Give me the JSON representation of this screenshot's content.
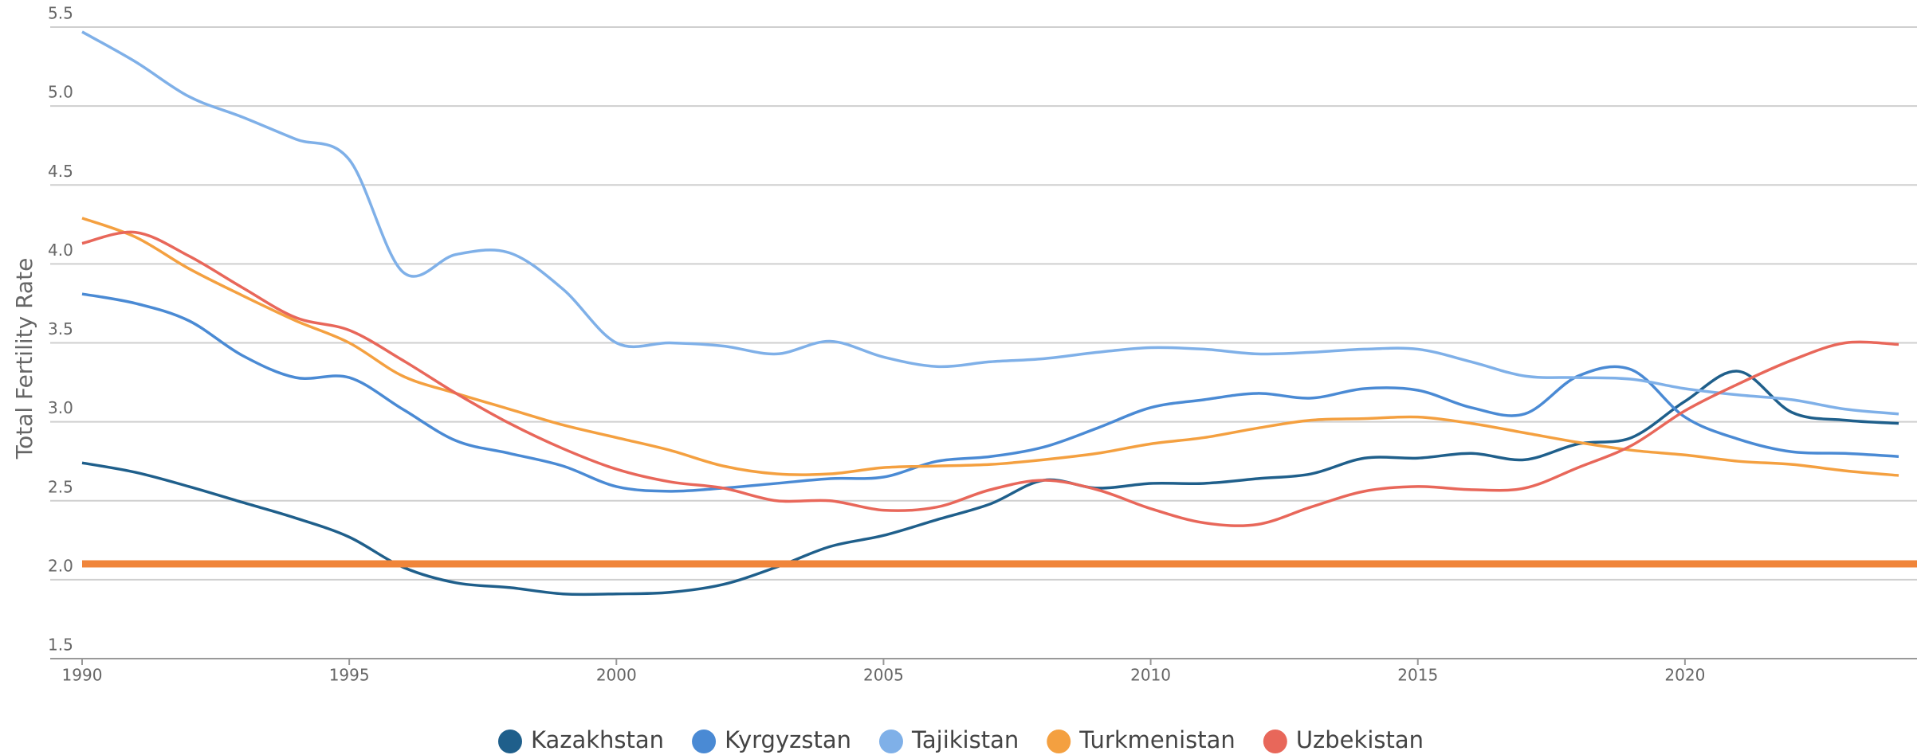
{
  "chart_data": {
    "type": "line",
    "y_axis_label": "Total Fertility Rate",
    "x": [
      1990,
      1991,
      1992,
      1993,
      1994,
      1995,
      1996,
      1997,
      1998,
      1999,
      2000,
      2001,
      2002,
      2003,
      2004,
      2005,
      2006,
      2007,
      2008,
      2009,
      2010,
      2011,
      2012,
      2013,
      2014,
      2015,
      2016,
      2017,
      2018,
      2019,
      2020,
      2021,
      2022,
      2023,
      2024
    ],
    "xlim": [
      1990,
      2024
    ],
    "xticks": [
      1990,
      1995,
      2000,
      2005,
      2010,
      2015,
      2020
    ],
    "ylim": [
      1.5,
      5.5
    ],
    "yticks": [
      1.5,
      {
        "value": 2,
        "label": "2.0"
      },
      2.5,
      {
        "value": 3,
        "label": "3.0"
      },
      3.5,
      {
        "value": 4,
        "label": "4.0"
      },
      4.5,
      {
        "value": 5,
        "label": "5.0"
      },
      5.5
    ],
    "grid": true,
    "legend": "bottom",
    "reference_line": {
      "value": 2.1,
      "color": "#f0853a"
    },
    "series": [
      {
        "name": "Kazakhstan",
        "color": "#1f5f8b",
        "values": [
          2.74,
          2.68,
          2.59,
          2.49,
          2.39,
          2.27,
          2.08,
          1.98,
          1.95,
          1.91,
          1.91,
          1.92,
          1.97,
          2.08,
          2.21,
          2.28,
          2.38,
          2.48,
          2.63,
          2.58,
          2.61,
          2.61,
          2.64,
          2.67,
          2.77,
          2.77,
          2.8,
          2.76,
          2.86,
          2.9,
          3.13,
          3.32,
          3.06,
          3.01,
          2.99
        ]
      },
      {
        "name": "Kyrgyzstan",
        "color": "#4a8ad4",
        "values": [
          3.81,
          3.75,
          3.64,
          3.42,
          3.28,
          3.28,
          3.08,
          2.88,
          2.8,
          2.72,
          2.59,
          2.56,
          2.58,
          2.61,
          2.64,
          2.65,
          2.75,
          2.78,
          2.84,
          2.96,
          3.09,
          3.14,
          3.18,
          3.15,
          3.21,
          3.2,
          3.09,
          3.05,
          3.29,
          3.33,
          3.03,
          2.89,
          2.81,
          2.8,
          2.78
        ]
      },
      {
        "name": "Tajikistan",
        "color": "#7fb0e8",
        "values": [
          5.47,
          5.28,
          5.06,
          4.93,
          4.79,
          4.66,
          3.95,
          4.06,
          4.07,
          3.84,
          3.5,
          3.5,
          3.48,
          3.43,
          3.51,
          3.41,
          3.35,
          3.38,
          3.4,
          3.44,
          3.47,
          3.46,
          3.43,
          3.44,
          3.46,
          3.46,
          3.38,
          3.29,
          3.28,
          3.27,
          3.21,
          3.17,
          3.14,
          3.08,
          3.05
        ]
      },
      {
        "name": "Turkmenistan",
        "color": "#f4a040",
        "values": [
          4.29,
          4.17,
          3.97,
          3.8,
          3.64,
          3.5,
          3.29,
          3.18,
          3.08,
          2.98,
          2.9,
          2.82,
          2.72,
          2.67,
          2.67,
          2.71,
          2.72,
          2.73,
          2.76,
          2.8,
          2.86,
          2.9,
          2.96,
          3.01,
          3.02,
          3.03,
          2.99,
          2.93,
          2.87,
          2.82,
          2.79,
          2.75,
          2.73,
          2.69,
          2.66
        ]
      },
      {
        "name": "Uzbekistan",
        "color": "#e8675a",
        "values": [
          4.13,
          4.2,
          4.05,
          3.85,
          3.66,
          3.58,
          3.39,
          3.18,
          2.99,
          2.83,
          2.7,
          2.62,
          2.58,
          2.5,
          2.5,
          2.44,
          2.46,
          2.57,
          2.63,
          2.57,
          2.45,
          2.36,
          2.35,
          2.46,
          2.56,
          2.59,
          2.57,
          2.58,
          2.71,
          2.85,
          3.07,
          3.24,
          3.39,
          3.5,
          3.49
        ]
      }
    ]
  }
}
